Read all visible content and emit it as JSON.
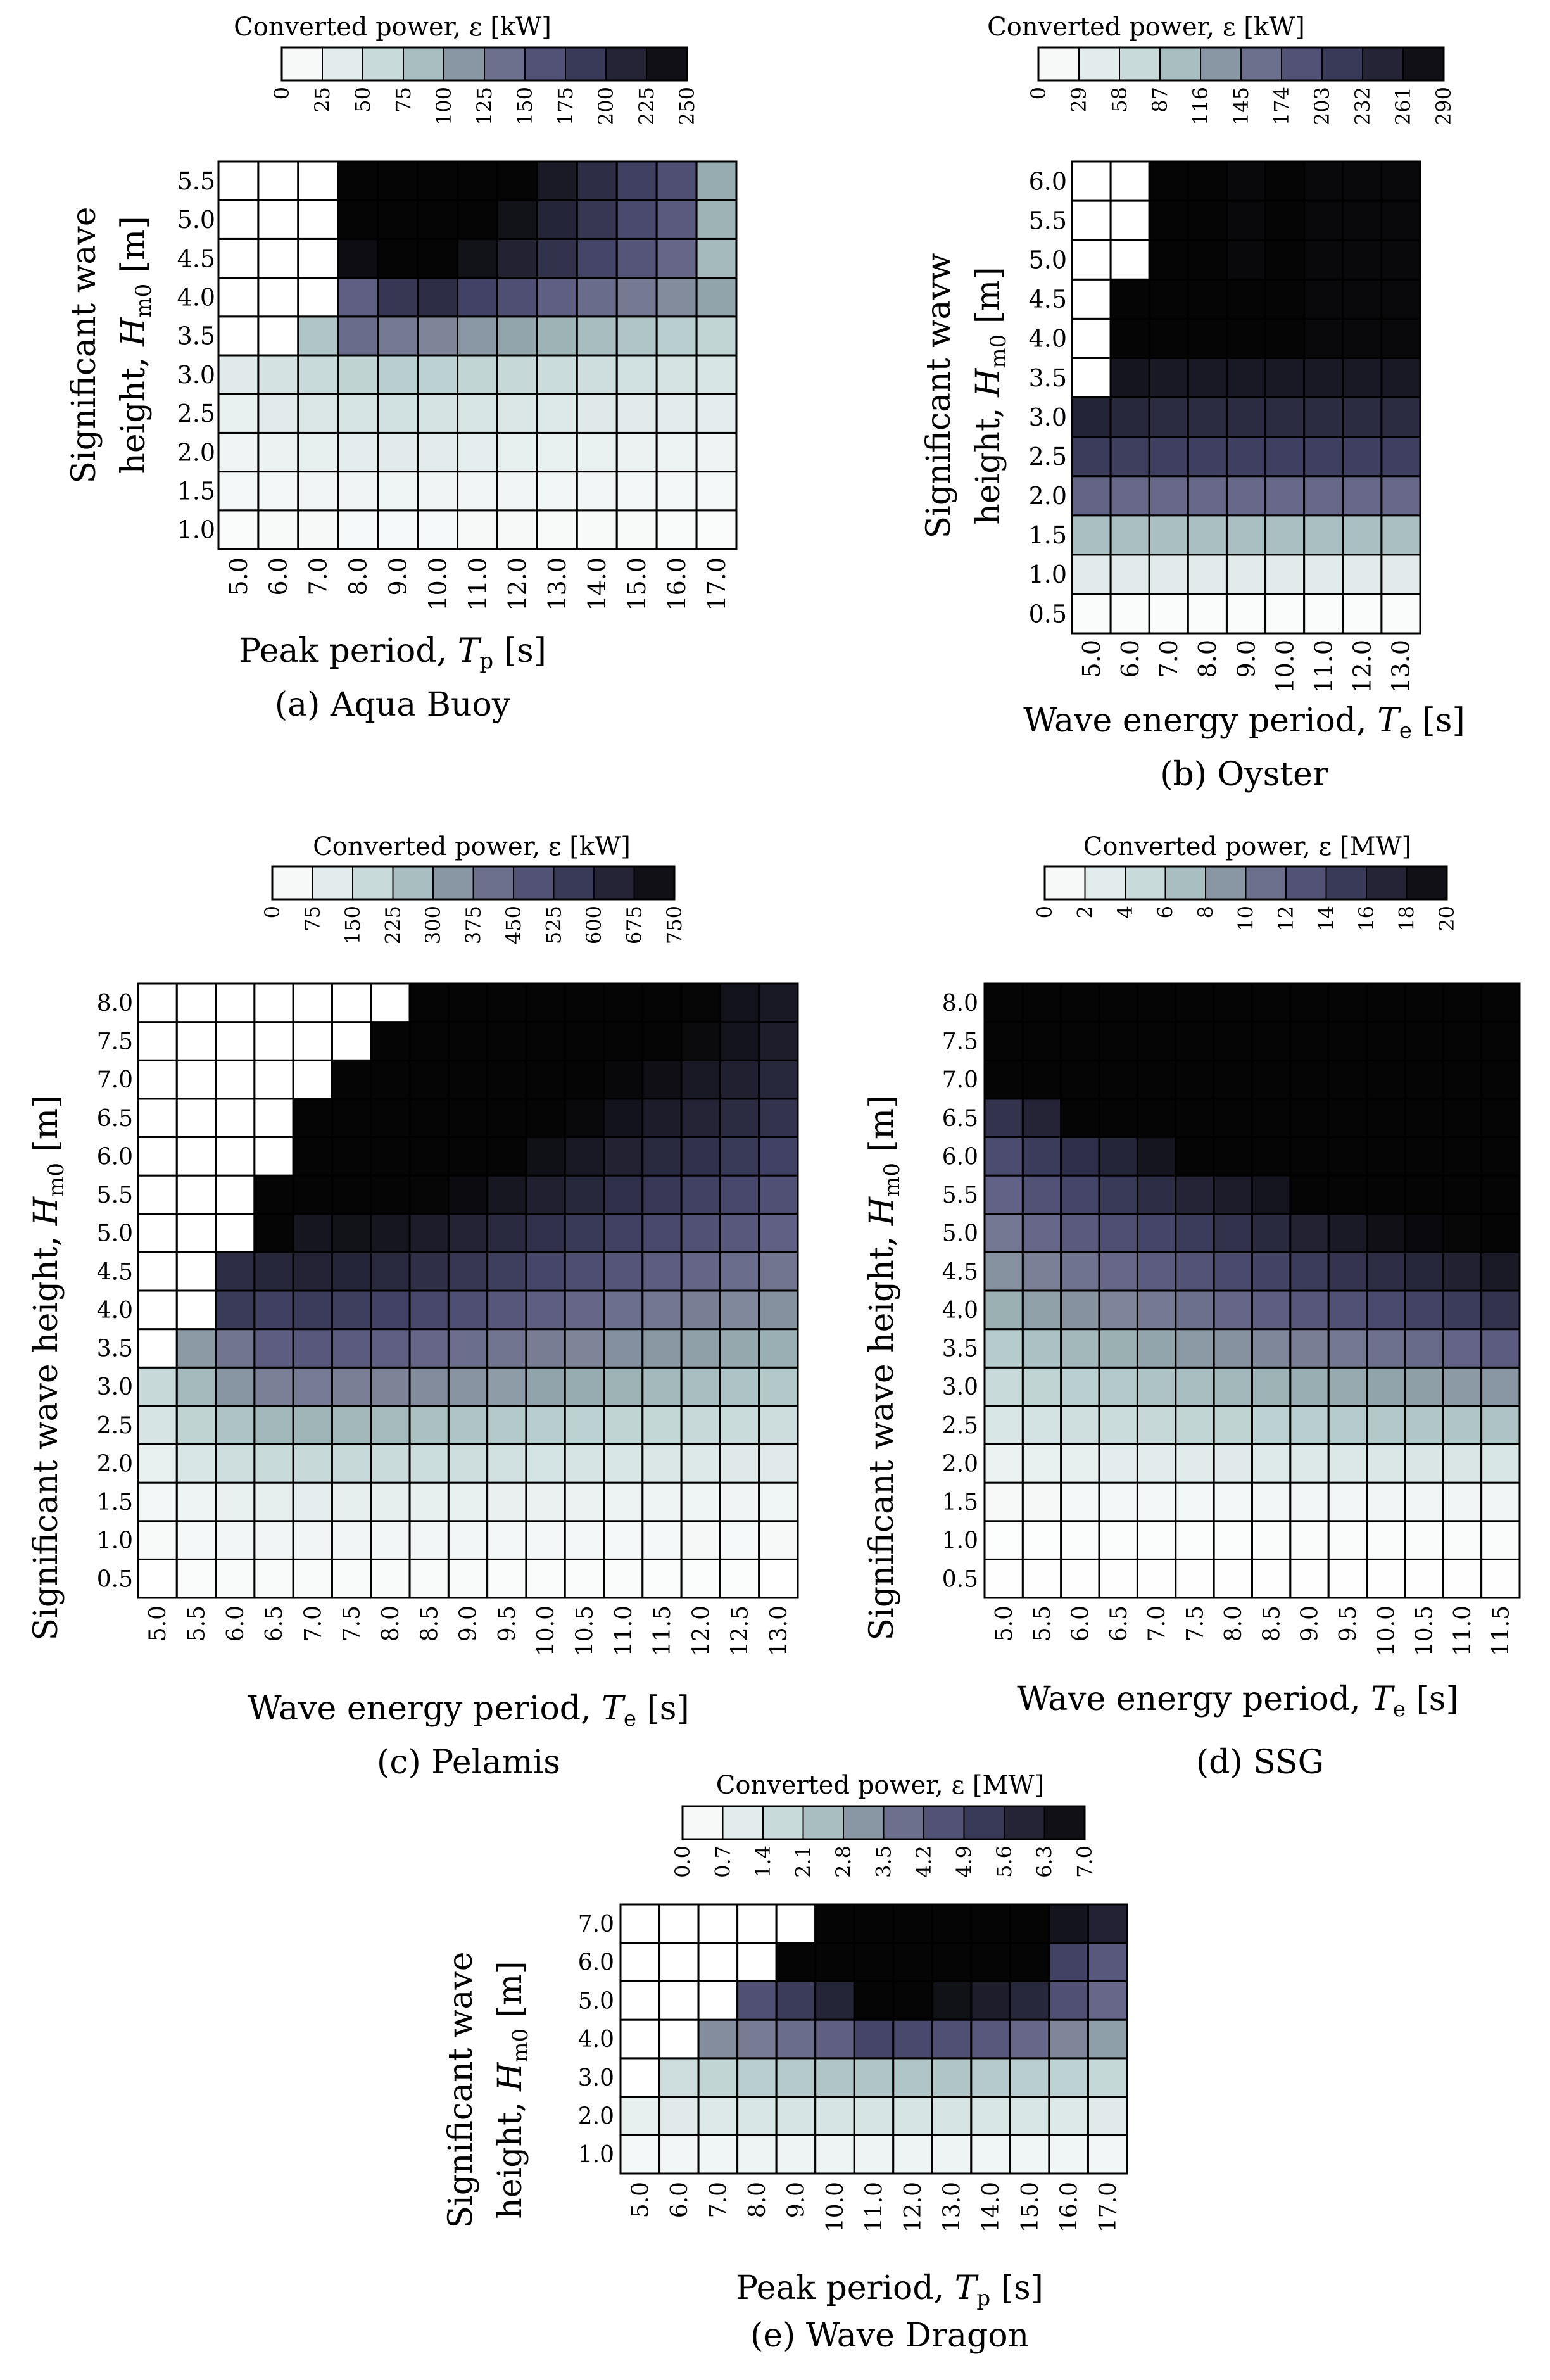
{
  "colorscale": {
    "stops": [
      "#ffffff",
      "#eef3f3",
      "#d6e4e4",
      "#b9cfcf",
      "#97acb0",
      "#7b8096",
      "#5f5f84",
      "#45456a",
      "#2d2d45",
      "#1a1a27",
      "#050505"
    ]
  },
  "chart_data": [
    {
      "id": "a",
      "type": "heatmap",
      "caption": "(a) Aqua Buoy",
      "colorbar_title": "Converted power, ε [kW]",
      "colorbar_ticks": [
        "0",
        "25",
        "50",
        "75",
        "100",
        "125",
        "150",
        "175",
        "200",
        "225",
        "250"
      ],
      "vmax": 250,
      "xlabel": "Peak period, T_p [s]",
      "ylabel": [
        "Significant wave",
        "height, H_m0 [m]"
      ],
      "x": [
        "5.0",
        "6.0",
        "7.0",
        "8.0",
        "9.0",
        "10.0",
        "11.0",
        "12.0",
        "13.0",
        "14.0",
        "15.0",
        "16.0",
        "17.0"
      ],
      "y": [
        "1.0",
        "1.5",
        "2.0",
        "2.5",
        "3.0",
        "3.5",
        "4.0",
        "4.5",
        "5.0",
        "5.5"
      ],
      "values": [
        [
          8,
          10,
          12,
          13,
          13,
          13,
          12,
          12,
          11,
          11,
          10,
          9,
          8
        ],
        [
          14,
          17,
          20,
          22,
          23,
          22,
          21,
          20,
          19,
          18,
          17,
          16,
          15
        ],
        [
          22,
          27,
          32,
          35,
          38,
          36,
          34,
          32,
          30,
          29,
          27,
          26,
          24
        ],
        [
          30,
          38,
          45,
          50,
          54,
          51,
          48,
          45,
          43,
          41,
          39,
          37,
          35
        ],
        [
          40,
          52,
          62,
          70,
          75,
          72,
          68,
          64,
          60,
          57,
          54,
          51,
          48
        ],
        [
          0,
          0,
          82,
          140,
          130,
          122,
          112,
          104,
          95,
          88,
          82,
          75,
          68
        ],
        [
          0,
          0,
          0,
          150,
          190,
          200,
          178,
          165,
          150,
          140,
          130,
          118,
          105
        ],
        [
          0,
          0,
          0,
          240,
          250,
          250,
          235,
          215,
          195,
          175,
          160,
          145,
          90
        ],
        [
          0,
          0,
          0,
          250,
          250,
          250,
          250,
          235,
          210,
          190,
          170,
          155,
          95
        ],
        [
          0,
          0,
          0,
          250,
          250,
          250,
          250,
          250,
          225,
          200,
          180,
          165,
          100
        ]
      ]
    },
    {
      "id": "b",
      "type": "heatmap",
      "caption": "(b) Oyster",
      "colorbar_title": "Converted power, ε [kW]",
      "colorbar_ticks": [
        "0",
        "29",
        "58",
        "87",
        "116",
        "145",
        "174",
        "203",
        "232",
        "261",
        "290"
      ],
      "vmax": 290,
      "xlabel": "Wave energy period, T_e [s]",
      "ylabel": [
        "Significant wavw",
        "height, H_m0 [m]"
      ],
      "x": [
        "5.0",
        "6.0",
        "7.0",
        "8.0",
        "9.0",
        "10.0",
        "11.0",
        "12.0",
        "13.0"
      ],
      "y": [
        "0.5",
        "1.0",
        "1.5",
        "2.0",
        "2.5",
        "3.0",
        "3.5",
        "4.0",
        "4.5",
        "5.0",
        "5.5",
        "6.0"
      ],
      "values": [
        [
          8,
          8,
          8,
          8,
          8,
          8,
          8,
          8,
          8
        ],
        [
          45,
          45,
          45,
          45,
          45,
          45,
          45,
          45,
          45
        ],
        [
          100,
          100,
          100,
          100,
          100,
          100,
          100,
          100,
          100
        ],
        [
          170,
          165,
          165,
          165,
          165,
          165,
          165,
          165,
          165
        ],
        [
          215,
          212,
          210,
          210,
          210,
          210,
          210,
          210,
          210
        ],
        [
          245,
          240,
          235,
          235,
          235,
          235,
          235,
          235,
          235
        ],
        [
          0,
          268,
          262,
          262,
          262,
          262,
          262,
          262,
          262
        ],
        [
          0,
          290,
          290,
          290,
          290,
          290,
          285,
          285,
          285
        ],
        [
          0,
          290,
          290,
          290,
          290,
          290,
          285,
          285,
          285
        ],
        [
          0,
          0,
          290,
          290,
          285,
          290,
          285,
          285,
          285
        ],
        [
          0,
          0,
          290,
          290,
          285,
          290,
          285,
          285,
          285
        ],
        [
          0,
          0,
          290,
          290,
          285,
          290,
          285,
          285,
          285
        ]
      ]
    },
    {
      "id": "c",
      "type": "heatmap",
      "caption": "(c) Pelamis",
      "colorbar_title": "Converted power, ε [kW]",
      "colorbar_ticks": [
        "0",
        "75",
        "150",
        "225",
        "300",
        "375",
        "450",
        "525",
        "600",
        "675",
        "750"
      ],
      "vmax": 750,
      "xlabel": "Wave energy period, T_e [s]",
      "ylabel": [
        "Significant wave height, H_m0 [m]"
      ],
      "x": [
        "5.0",
        "5.5",
        "6.0",
        "6.5",
        "7.0",
        "7.5",
        "8.0",
        "8.5",
        "9.0",
        "9.5",
        "10.0",
        "10.5",
        "11.0",
        "11.5",
        "12.0",
        "12.5",
        "13.0"
      ],
      "y": [
        "0.5",
        "1.0",
        "1.5",
        "2.0",
        "2.5",
        "3.0",
        "3.5",
        "4.0",
        "4.5",
        "5.0",
        "5.5",
        "6.0",
        "6.5",
        "7.0",
        "7.5",
        "8.0"
      ],
      "values": [
        [
          0,
          20,
          25,
          28,
          28,
          28,
          27,
          26,
          25,
          24,
          22,
          21,
          20,
          19,
          18,
          17,
          0
        ],
        [
          30,
          45,
          55,
          60,
          60,
          60,
          58,
          56,
          54,
          52,
          49,
          47,
          45,
          43,
          41,
          39,
          37
        ],
        [
          50,
          75,
          90,
          100,
          102,
          100,
          98,
          95,
          92,
          88,
          84,
          80,
          77,
          73,
          70,
          67,
          64
        ],
        [
          90,
          140,
          170,
          185,
          190,
          188,
          182,
          176,
          170,
          163,
          155,
          148,
          142,
          135,
          129,
          123,
          118
        ],
        [
          150,
          210,
          250,
          275,
          280,
          275,
          268,
          258,
          248,
          238,
          228,
          218,
          208,
          198,
          190,
          182,
          174
        ],
        [
          190,
          270,
          340,
          375,
          385,
          378,
          368,
          355,
          341,
          327,
          313,
          299,
          286,
          273,
          261,
          250,
          240
        ],
        [
          0,
          330,
          400,
          455,
          470,
          462,
          450,
          434,
          417,
          400,
          382,
          366,
          350,
          334,
          320,
          306,
          293
        ],
        [
          0,
          0,
          560,
          540,
          555,
          548,
          534,
          515,
          495,
          474,
          453,
          433,
          414,
          396,
          379,
          362,
          346
        ],
        [
          0,
          0,
          600,
          625,
          640,
          630,
          615,
          593,
          570,
          547,
          523,
          500,
          478,
          457,
          437,
          418,
          400
        ],
        [
          0,
          0,
          0,
          750,
          690,
          705,
          690,
          666,
          640,
          614,
          588,
          562,
          537,
          513,
          490,
          469,
          448
        ],
        [
          0,
          0,
          0,
          750,
          750,
          750,
          750,
          745,
          725,
          685,
          650,
          620,
          590,
          564,
          539,
          515,
          492
        ],
        [
          0,
          0,
          0,
          0,
          750,
          750,
          750,
          750,
          750,
          750,
          710,
          677,
          645,
          615,
          587,
          561,
          536
        ],
        [
          0,
          0,
          0,
          0,
          750,
          750,
          750,
          750,
          750,
          750,
          750,
          735,
          700,
          667,
          637,
          608,
          581
        ],
        [
          0,
          0,
          0,
          0,
          0,
          750,
          750,
          750,
          750,
          750,
          750,
          750,
          740,
          715,
          680,
          650,
          620
        ],
        [
          0,
          0,
          0,
          0,
          0,
          0,
          750,
          750,
          750,
          750,
          750,
          750,
          750,
          750,
          730,
          695,
          665
        ],
        [
          0,
          0,
          0,
          0,
          0,
          0,
          0,
          750,
          750,
          750,
          750,
          750,
          750,
          750,
          745,
          700,
          680
        ]
      ]
    },
    {
      "id": "d",
      "type": "heatmap",
      "caption": "(d) SSG",
      "colorbar_title": "Converted power, ε [MW]",
      "colorbar_ticks": [
        "0",
        "2",
        "4",
        "6",
        "8",
        "10",
        "12",
        "14",
        "16",
        "18",
        "20"
      ],
      "vmax": 20,
      "xlabel": "Wave energy period, T_e [s]",
      "ylabel": [
        "Significant wave height, H_m0 [m]"
      ],
      "x": [
        "5.0",
        "5.5",
        "6.0",
        "6.5",
        "7.0",
        "7.5",
        "8.0",
        "8.5",
        "9.0",
        "9.5",
        "10.0",
        "10.5",
        "11.0",
        "11.5"
      ],
      "y": [
        "0.5",
        "1.0",
        "1.5",
        "2.0",
        "2.5",
        "3.0",
        "3.5",
        "4.0",
        "4.5",
        "5.0",
        "5.5",
        "6.0",
        "6.5",
        "7.0",
        "7.5",
        "8.0"
      ],
      "values": [
        [
          0.1,
          0.1,
          0.1,
          0.1,
          0.1,
          0.1,
          0.1,
          0.1,
          0.1,
          0.1,
          0.1,
          0.1,
          0.1,
          0.1
        ],
        [
          0.4,
          0.4,
          0.5,
          0.5,
          0.5,
          0.5,
          0.5,
          0.6,
          0.6,
          0.6,
          0.6,
          0.6,
          0.6,
          0.6
        ],
        [
          1.0,
          1.1,
          1.2,
          1.3,
          1.3,
          1.4,
          1.4,
          1.5,
          1.5,
          1.5,
          1.6,
          1.6,
          1.6,
          1.6
        ],
        [
          2.2,
          2.4,
          2.6,
          2.8,
          3.0,
          3.1,
          3.2,
          3.3,
          3.4,
          3.5,
          3.6,
          3.7,
          3.7,
          3.8
        ],
        [
          3.8,
          4.2,
          4.5,
          4.8,
          5.1,
          5.4,
          5.6,
          5.8,
          6.0,
          6.2,
          6.4,
          6.5,
          6.6,
          6.7
        ],
        [
          5.0,
          5.5,
          5.9,
          6.3,
          6.7,
          7.0,
          7.3,
          7.6,
          7.9,
          8.1,
          8.4,
          8.6,
          8.8,
          9.0
        ],
        [
          6.2,
          6.8,
          7.3,
          7.8,
          8.3,
          8.8,
          9.2,
          9.7,
          10.1,
          10.5,
          10.9,
          11.3,
          11.7,
          12.2
        ],
        [
          7.8,
          8.5,
          9.2,
          9.8,
          10.4,
          11.0,
          11.6,
          12.1,
          12.6,
          13.1,
          13.6,
          14.2,
          14.8,
          15.5
        ],
        [
          9.2,
          10.0,
          10.8,
          11.5,
          12.2,
          12.9,
          13.6,
          14.2,
          14.8,
          15.4,
          16.0,
          16.6,
          17.3,
          18.0
        ],
        [
          10.5,
          11.5,
          12.4,
          13.2,
          14.0,
          14.8,
          15.6,
          16.4,
          17.2,
          18.0,
          19.0,
          19.5,
          19.8,
          20
        ],
        [
          11.8,
          13.0,
          14.0,
          15.0,
          16.0,
          17.0,
          17.8,
          18.5,
          20,
          20,
          20,
          20,
          20,
          20
        ],
        [
          13.5,
          14.8,
          15.8,
          16.8,
          18.5,
          20,
          20,
          20,
          20,
          20,
          20,
          20,
          20,
          20
        ],
        [
          15.5,
          17.0,
          20,
          20,
          20,
          20,
          20,
          20,
          20,
          20,
          20,
          20,
          20,
          20
        ],
        [
          20,
          20,
          20,
          20,
          20,
          20,
          20,
          20,
          20,
          20,
          20,
          20,
          20,
          20
        ],
        [
          20,
          20,
          20,
          20,
          20,
          20,
          20,
          20,
          20,
          20,
          20,
          20,
          20,
          20
        ],
        [
          20,
          20,
          20,
          20,
          20,
          20,
          20,
          20,
          20,
          20,
          20,
          20,
          20,
          20
        ]
      ]
    },
    {
      "id": "e",
      "type": "heatmap",
      "caption": "(e) Wave Dragon",
      "colorbar_title": "Converted power, ε [MW]",
      "colorbar_ticks": [
        "0.0",
        "0.7",
        "1.4",
        "2.1",
        "2.8",
        "3.5",
        "4.2",
        "4.9",
        "5.6",
        "6.3",
        "7.0"
      ],
      "vmax": 7,
      "xlabel": "Peak period, T_p [s]",
      "ylabel": [
        "Significant wave",
        "height, H_m0 [m]"
      ],
      "x": [
        "5.0",
        "6.0",
        "7.0",
        "8.0",
        "9.0",
        "10.0",
        "11.0",
        "12.0",
        "13.0",
        "14.0",
        "15.0",
        "16.0",
        "17.0"
      ],
      "y": [
        "1.0",
        "2.0",
        "3.0",
        "4.0",
        "5.0",
        "6.0",
        "7.0"
      ],
      "values": [
        [
          0.4,
          0.5,
          0.6,
          0.7,
          0.7,
          0.7,
          0.7,
          0.7,
          0.7,
          0.6,
          0.6,
          0.6,
          0.5
        ],
        [
          0.9,
          1.1,
          1.2,
          1.3,
          1.4,
          1.4,
          1.4,
          1.4,
          1.4,
          1.3,
          1.3,
          1.2,
          1.1
        ],
        [
          0,
          1.6,
          1.9,
          2.1,
          2.2,
          2.3,
          2.3,
          2.3,
          2.3,
          2.2,
          2.1,
          2.0,
          1.8
        ],
        [
          0,
          0,
          3.3,
          3.6,
          3.9,
          4.2,
          4.9,
          4.8,
          4.6,
          4.4,
          4.0,
          3.4,
          3.0
        ],
        [
          0,
          0,
          0,
          4.6,
          5.2,
          5.9,
          7.0,
          7.0,
          6.6,
          6.2,
          5.8,
          4.6,
          4.0
        ],
        [
          0,
          0,
          0,
          0,
          7.0,
          7.0,
          7.0,
          7.0,
          7.0,
          7.0,
          7.0,
          5.0,
          4.4
        ],
        [
          0,
          0,
          0,
          0,
          0,
          7.0,
          7.0,
          7.0,
          7.0,
          7.0,
          7.0,
          6.5,
          6.0
        ]
      ]
    }
  ]
}
